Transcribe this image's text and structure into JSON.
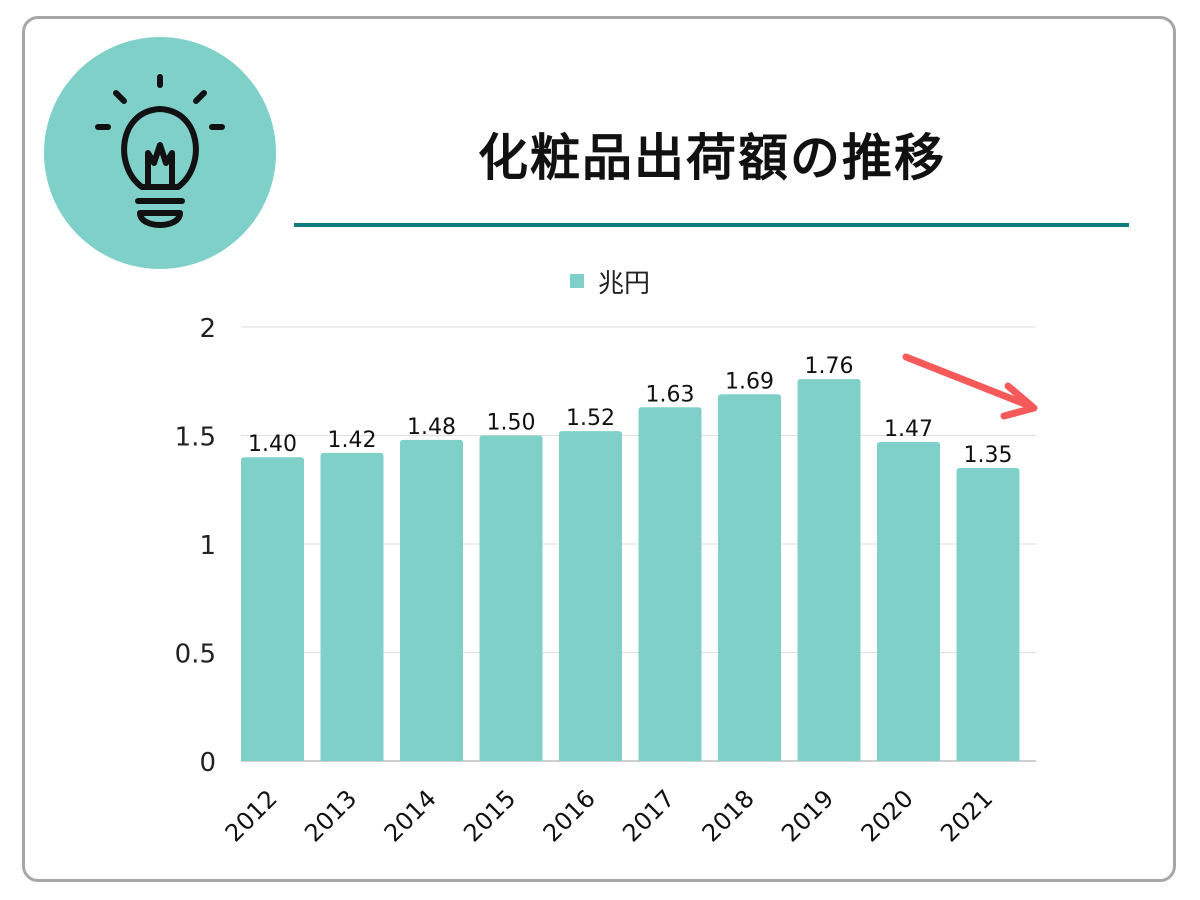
{
  "title": "化粧品出荷額の推移",
  "legend": {
    "label": "兆円"
  },
  "icon": "lightbulb-icon",
  "colors": {
    "bar": "#80d0ca",
    "accent": "#0f7b7b",
    "arrow": "#f45a5a",
    "border": "#a6a6a6"
  },
  "chart_data": {
    "type": "bar",
    "categories": [
      "2012",
      "2013",
      "2014",
      "2015",
      "2016",
      "2017",
      "2018",
      "2019",
      "2020",
      "2021"
    ],
    "series": [
      {
        "name": "兆円",
        "values": [
          1.4,
          1.42,
          1.48,
          1.5,
          1.52,
          1.63,
          1.69,
          1.76,
          1.47,
          1.35
        ]
      }
    ],
    "data_labels": [
      "1.40",
      "1.42",
      "1.48",
      "1.50",
      "1.52",
      "1.63",
      "1.69",
      "1.76",
      "1.47",
      "1.35"
    ],
    "ylim": [
      0,
      2
    ],
    "yticks": [
      "0",
      "0.5",
      "1",
      "1.5",
      "2"
    ],
    "ytick_values": [
      0,
      0.5,
      1,
      1.5,
      2
    ],
    "grid": true,
    "legend_position": "top-center",
    "annotation": "down-trend-arrow"
  }
}
